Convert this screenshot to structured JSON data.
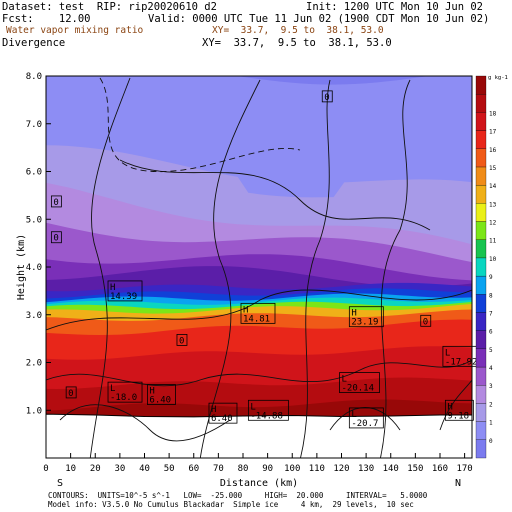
{
  "header": {
    "dataset_line": "Dataset: test  RIP: rip20020610 d2",
    "init_line": "Init: 1200 UTC Mon 10 Jun 02",
    "fcst_line": "Fcst:    12.00",
    "valid_line": "Valid: 0000 UTC Tue 11 Jun 02 (1900 CDT Mon 10 Jun 02)",
    "shaded_field": "Water vapor mixing ratio",
    "shaded_xy": "XY=  33.7,  9.5 to  38.1, 53.0",
    "contour_field": "Divergence",
    "contour_xy": "XY=  33.7,  9.5 to  38.1, 53.0"
  },
  "colors": {
    "shaded_field_text": "#8b4513",
    "background": "#ffffff"
  },
  "footer": {
    "contours_line": "CONTOURS:  UNITS=10^-5 s^-1   LOW=  -25.000     HIGH=  20.000     INTERVAL=   5.0000",
    "model_line": "Model info: V3.5.0 No Cumulus Blackadar  Simple ice     4 km,  29 levels,  10 sec"
  },
  "colorbar": {
    "unit": "g kg-1",
    "colors": [
      "#7b7bef",
      "#8d8df4",
      "#a79ae8",
      "#b38ae0",
      "#9b58cc",
      "#7a2fb8",
      "#5b1ea8",
      "#3a26c4",
      "#1040d8",
      "#0aa3f0",
      "#0ad6c0",
      "#18c450",
      "#7ce618",
      "#eaf018",
      "#f0b018",
      "#f08c18",
      "#f05a18",
      "#e8261a",
      "#d0141a",
      "#b40c10",
      "#980808"
    ],
    "labels": [
      "0",
      "1",
      "2",
      "3",
      "4",
      "5",
      "6",
      "7",
      "8",
      "9",
      "10",
      "11",
      "12",
      "13",
      "14",
      "15",
      "16",
      "17",
      "18"
    ]
  },
  "chart_data": {
    "type": "contour",
    "xlabel": "Distance (km)",
    "ylabel": "Height (km)",
    "xlim": [
      0,
      173
    ],
    "ylim": [
      0,
      8
    ],
    "x_ticks": [
      0,
      10,
      20,
      30,
      40,
      50,
      60,
      70,
      80,
      90,
      100,
      110,
      120,
      130,
      140,
      150,
      160,
      170
    ],
    "x_tick_labels": [
      "0",
      "10",
      "20",
      "30",
      "40",
      "50",
      "60",
      "70",
      "80",
      "90",
      "100",
      "110",
      "120",
      "130",
      "140",
      "150",
      "160",
      "170"
    ],
    "y_ticks": [
      1,
      2,
      3,
      4,
      5,
      6,
      7,
      8
    ],
    "y_tick_labels": [
      "1.0",
      "2.0",
      "3.0",
      "4.0",
      "5.0",
      "6.0",
      "7.0",
      "8.0"
    ],
    "direction_left": "S",
    "direction_right": "N",
    "shaded_bands": [
      {
        "color_index": 1,
        "top_left": 8.0,
        "top_right": 8.0
      },
      {
        "color_index": 2,
        "top_left": 6.4,
        "top_right": 5.6
      },
      {
        "color_index": 3,
        "top_left": 5.6,
        "top_right": 4.4
      },
      {
        "color_index": 4,
        "top_left": 4.9,
        "top_right": 4.2
      },
      {
        "color_index": 5,
        "top_left": 4.3,
        "top_right": 3.9
      },
      {
        "color_index": 6,
        "top_left": 3.9,
        "top_right": 3.75
      },
      {
        "color_index": 7,
        "top_left": 3.55,
        "top_right": 3.62
      },
      {
        "color_index": 8,
        "top_left": 3.4,
        "top_right": 3.52
      },
      {
        "color_index": 9,
        "top_left": 3.3,
        "top_right": 3.42
      },
      {
        "color_index": 10,
        "top_left": 3.22,
        "top_right": 3.34
      },
      {
        "color_index": 12,
        "top_left": 3.14,
        "top_right": 3.26
      },
      {
        "color_index": 14,
        "top_left": 3.05,
        "top_right": 3.18
      },
      {
        "color_index": 16,
        "top_left": 2.9,
        "top_right": 3.05
      },
      {
        "color_index": 17,
        "top_left": 2.6,
        "top_right": 2.85
      },
      {
        "color_index": 18,
        "top_left": 2.1,
        "top_right": 2.3
      },
      {
        "color_index": 19,
        "top_left": 1.5,
        "top_right": 1.65
      },
      {
        "color_index": 20,
        "top_left": 1.05,
        "top_right": 1.2
      }
    ],
    "terrain_km": [
      [
        0,
        0.92
      ],
      [
        20,
        0.9
      ],
      [
        40,
        0.87
      ],
      [
        60,
        0.86
      ],
      [
        80,
        0.88
      ],
      [
        100,
        0.89
      ],
      [
        120,
        0.87
      ],
      [
        140,
        0.88
      ],
      [
        160,
        0.9
      ],
      [
        173,
        0.9
      ]
    ],
    "labels_high": [
      {
        "x": 26,
        "y": 3.52,
        "value": "14.39"
      },
      {
        "x": 80,
        "y": 3.05,
        "value": "14.81"
      },
      {
        "x": 124,
        "y": 2.98,
        "value": "23.19"
      },
      {
        "x": 42,
        "y": 1.35,
        "value": "6.40"
      },
      {
        "x": 67,
        "y": 0.96,
        "value": "6.40"
      },
      {
        "x": 163,
        "y": 1.02,
        "value": "9.18"
      }
    ],
    "labels_low": [
      {
        "x": 26,
        "y": 1.4,
        "value": "-18.0"
      },
      {
        "x": 83,
        "y": 1.02,
        "value": "-14.88"
      },
      {
        "x": 120,
        "y": 1.6,
        "value": "-20.14"
      },
      {
        "x": 124,
        "y": 0.86,
        "value": "-20.7"
      },
      {
        "x": 162,
        "y": 2.15,
        "value": "-17.92"
      }
    ],
    "labels_zero": [
      {
        "x": 113,
        "y": 7.5,
        "value": "0"
      },
      {
        "x": 3,
        "y": 5.3,
        "value": "0"
      },
      {
        "x": 3,
        "y": 4.55,
        "value": "0"
      },
      {
        "x": 54,
        "y": 2.4,
        "value": "0"
      },
      {
        "x": 9,
        "y": 1.3,
        "value": "0"
      },
      {
        "x": 153,
        "y": 2.8,
        "value": "0"
      }
    ]
  }
}
